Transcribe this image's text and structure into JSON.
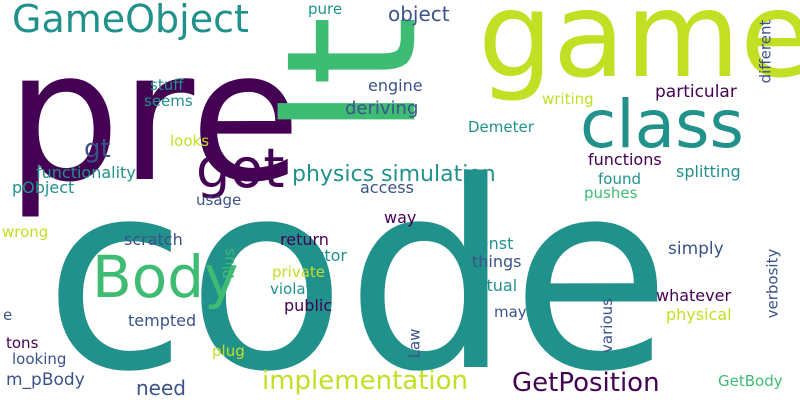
{
  "colors": {
    "background": "#ffffff",
    "purple": "#440154",
    "indigo": "#3b528b",
    "teal": "#21918c",
    "green": "#3fbc73",
    "lime": "#c2df23"
  },
  "words": {
    "code": "code",
    "pre": "pre",
    "game": "game",
    "lt": "lt",
    "class": "class",
    "got": "got",
    "body": "Body",
    "gameobject": "GameObject",
    "implementation": "implementation",
    "getposition": "GetPosition",
    "physics_simulation": "physics simulation",
    "object": "object",
    "pure": "pure",
    "different": "different",
    "particular": "particular",
    "writing": "writing",
    "engine": "engine",
    "deriving": "deriving",
    "demeter": "Demeter",
    "stuff": "stuff",
    "seems": "seems",
    "gt": "gt",
    "looks": "looks",
    "functionality": "functionality",
    "pobject": "pObject",
    "functions": "functions",
    "found": "found",
    "splitting": "splitting",
    "access": "access",
    "pushes": "pushes",
    "usage": "usage",
    "way": "way",
    "wrong": "wrong",
    "scratch": "scratch",
    "return": "return",
    "const": "const",
    "simply": "simply",
    "vector": "Vector",
    "things": "things",
    "private": "private",
    "violates": "violates",
    "virtual": "virtual",
    "verbosity": "verbosity",
    "plus": "Plus",
    "whatever": "whatever",
    "e": "e",
    "public": "public",
    "may": "may",
    "physical": "physical",
    "tempted": "tempted",
    "tons": "tons",
    "looking": "looking",
    "m_pbody": "m_pBody",
    "law": "Law",
    "various": "various",
    "need": "need",
    "plug": "plug",
    "getbody": "GetBody"
  }
}
